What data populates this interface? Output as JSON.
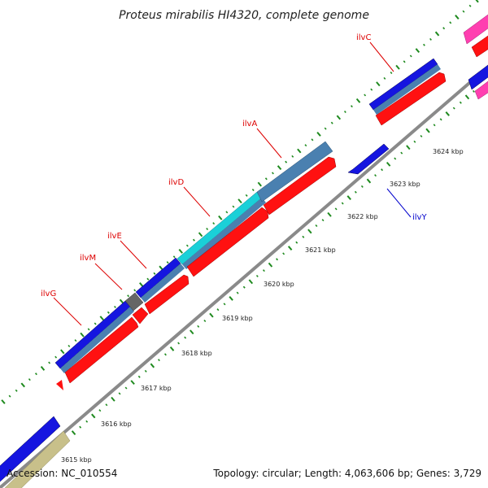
{
  "title": "Proteus mirabilis HI4320, complete genome",
  "footer": {
    "accession": "Accession: NC_010554",
    "summary": "Topology: circular; Length: 4,063,606 bp; Genes: 3,729"
  },
  "colors": {
    "backbone": "#888888",
    "tick": "#1f8a1f",
    "cds": "#ff1111",
    "gene_blue": "#1515e0",
    "gene_steel": "#4a80b0",
    "gene_cyan": "#1ad0d8",
    "gene_gray": "#666666",
    "gene_magenta": "#ff3fb0",
    "gene_khaki": "#c8c08a",
    "label_red": "#dd0000",
    "label_blue": "#0000cc"
  },
  "ticks": [
    {
      "label": "3615 kbp"
    },
    {
      "label": "3616 kbp"
    },
    {
      "label": "3617 kbp"
    },
    {
      "label": "3618 kbp"
    },
    {
      "label": "3619 kbp"
    },
    {
      "label": "3620 kbp"
    },
    {
      "label": "3621 kbp"
    },
    {
      "label": "3622 kbp"
    },
    {
      "label": "3623 kbp"
    },
    {
      "label": "3624 kbp"
    }
  ],
  "genes": [
    {
      "name": "ilvG"
    },
    {
      "name": "ilvM"
    },
    {
      "name": "ilvE"
    },
    {
      "name": "ilvD"
    },
    {
      "name": "ilvA"
    },
    {
      "name": "ilvC"
    },
    {
      "name": "ilvY"
    }
  ]
}
